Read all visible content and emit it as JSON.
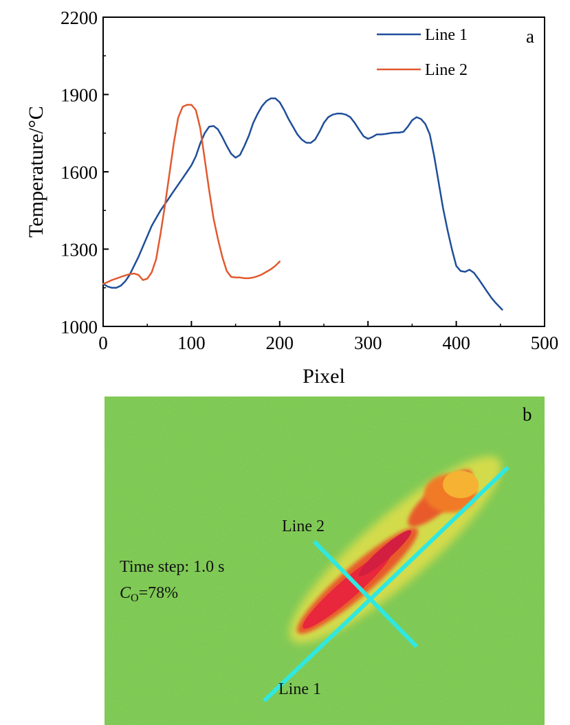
{
  "chart_data": {
    "type": "line",
    "panel_label": "a",
    "xlabel": "Pixel",
    "ylabel": "Temperature/°C",
    "xlim": [
      0,
      500
    ],
    "ylim": [
      1000,
      2200
    ],
    "x_ticks": [
      0,
      100,
      200,
      300,
      400,
      500
    ],
    "y_ticks": [
      1000,
      1300,
      1600,
      1900,
      2200
    ],
    "grid": false,
    "legend_position": "top-right",
    "series": [
      {
        "name": "Line 1",
        "color": "#1f4e9a",
        "x": [
          0,
          5,
          10,
          15,
          20,
          25,
          30,
          35,
          40,
          45,
          50,
          55,
          60,
          65,
          70,
          75,
          80,
          85,
          90,
          95,
          100,
          105,
          110,
          115,
          120,
          125,
          130,
          135,
          140,
          145,
          150,
          155,
          160,
          165,
          170,
          175,
          180,
          185,
          190,
          195,
          200,
          205,
          210,
          215,
          220,
          225,
          230,
          235,
          240,
          245,
          250,
          255,
          260,
          265,
          270,
          275,
          280,
          285,
          290,
          295,
          300,
          305,
          310,
          315,
          320,
          325,
          330,
          335,
          340,
          345,
          350,
          355,
          360,
          365,
          370,
          375,
          380,
          385,
          390,
          395,
          400,
          405,
          410,
          415,
          420,
          425,
          430,
          435,
          440,
          445,
          452
        ],
        "y": [
          1165,
          1155,
          1150,
          1150,
          1158,
          1175,
          1200,
          1235,
          1270,
          1310,
          1350,
          1390,
          1420,
          1450,
          1475,
          1500,
          1525,
          1550,
          1575,
          1600,
          1625,
          1660,
          1710,
          1750,
          1775,
          1778,
          1765,
          1735,
          1700,
          1670,
          1655,
          1665,
          1700,
          1740,
          1790,
          1825,
          1855,
          1875,
          1885,
          1885,
          1870,
          1840,
          1805,
          1775,
          1745,
          1725,
          1713,
          1712,
          1725,
          1755,
          1790,
          1812,
          1822,
          1826,
          1826,
          1822,
          1812,
          1790,
          1763,
          1738,
          1728,
          1735,
          1745,
          1745,
          1747,
          1750,
          1752,
          1752,
          1755,
          1775,
          1800,
          1812,
          1805,
          1785,
          1745,
          1660,
          1560,
          1460,
          1375,
          1300,
          1235,
          1215,
          1212,
          1220,
          1208,
          1185,
          1160,
          1135,
          1110,
          1090,
          1065
        ]
      },
      {
        "name": "Line 2",
        "color": "#e2592f",
        "x": [
          0,
          5,
          10,
          15,
          20,
          25,
          30,
          35,
          40,
          45,
          50,
          55,
          60,
          65,
          70,
          75,
          80,
          85,
          90,
          95,
          100,
          105,
          110,
          115,
          120,
          125,
          130,
          135,
          140,
          145,
          150,
          155,
          160,
          165,
          170,
          175,
          180,
          185,
          190,
          195,
          200
        ],
        "y": [
          1165,
          1172,
          1180,
          1186,
          1192,
          1198,
          1203,
          1205,
          1200,
          1180,
          1185,
          1210,
          1260,
          1360,
          1470,
          1590,
          1710,
          1810,
          1852,
          1860,
          1860,
          1840,
          1770,
          1650,
          1530,
          1420,
          1340,
          1270,
          1215,
          1192,
          1190,
          1190,
          1187,
          1187,
          1190,
          1195,
          1202,
          1212,
          1222,
          1235,
          1252
        ]
      }
    ]
  },
  "image_panel": {
    "panel_label": "b",
    "time_step_text": "Time step: 1.0 s",
    "concentration_symbol": "C",
    "concentration_subscript": "O",
    "concentration_value": "=78%",
    "line1_label": "Line 1",
    "line2_label": "Line 2",
    "background_color": "#6fc24a",
    "line_color": "#2fe8e0"
  }
}
